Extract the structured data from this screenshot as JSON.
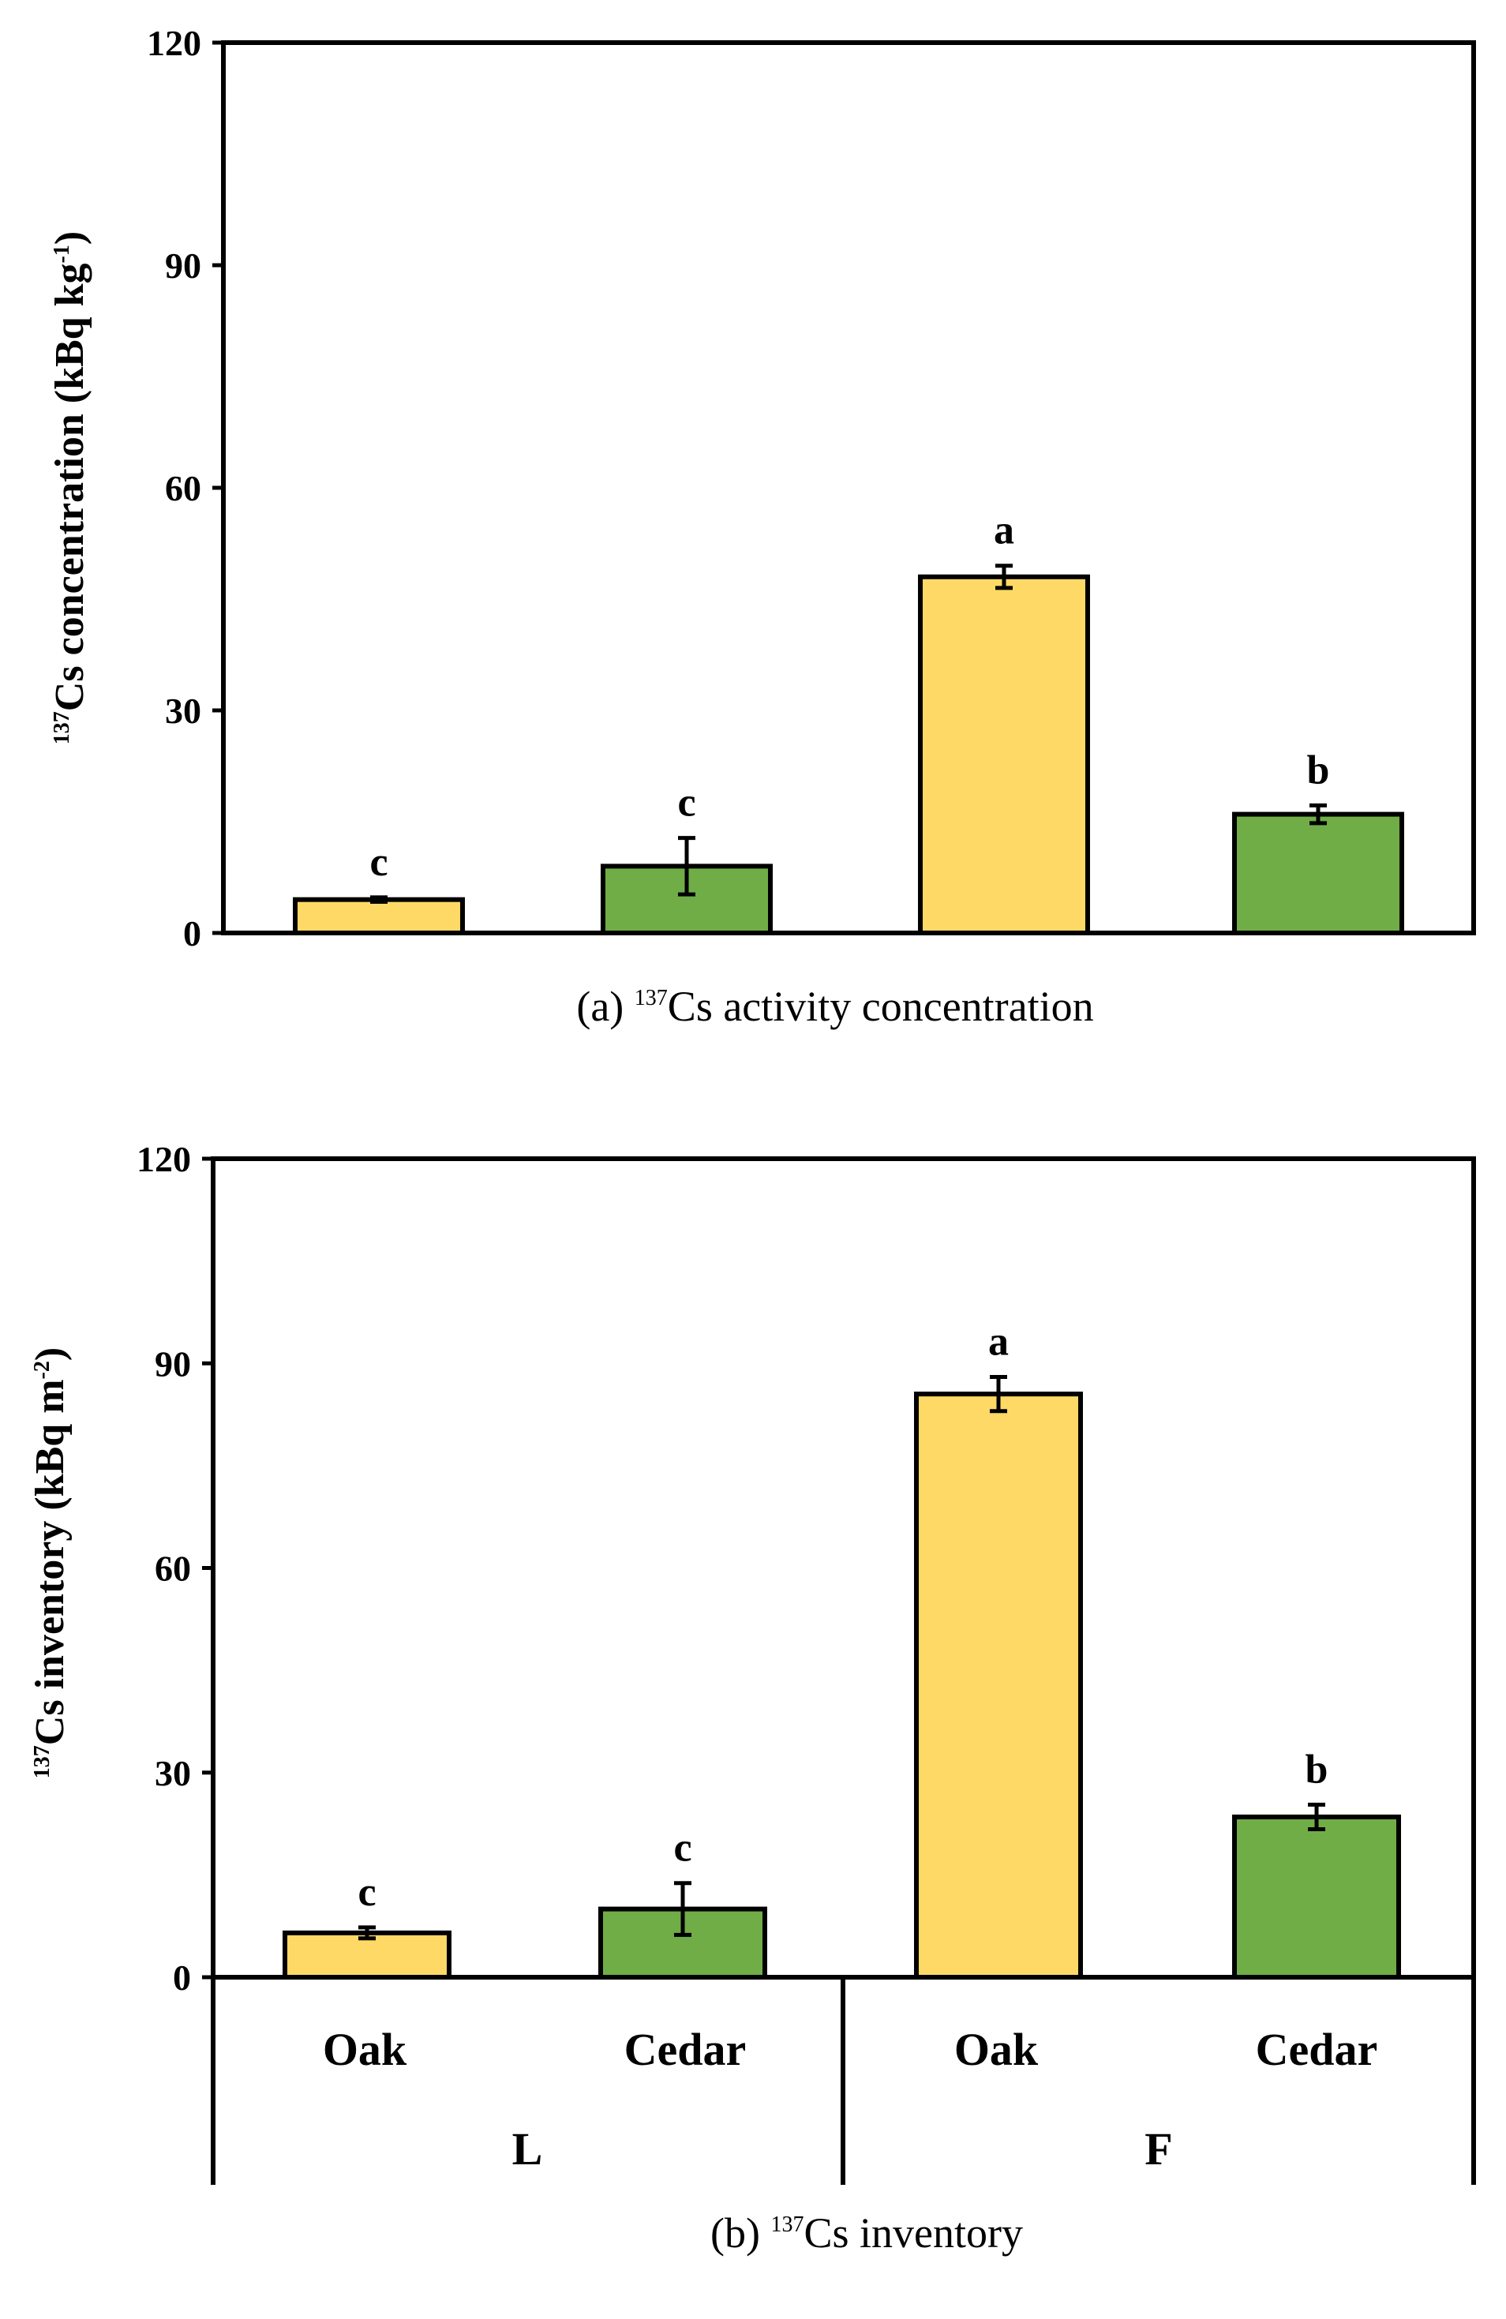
{
  "chart_data": [
    {
      "id": "a",
      "type": "bar",
      "caption": {
        "prefix": "(a) ",
        "sup": "137",
        "text": "Cs activity concentration"
      },
      "ylabel": {
        "sup": "137",
        "text": "Cs concentration (kBq kg",
        "unit_sup": "-1",
        "end": ")"
      },
      "ylim": [
        0,
        120
      ],
      "yticks": [
        "0",
        "30",
        "60",
        "90",
        "120"
      ],
      "bars": [
        {
          "group": "L",
          "category": "Oak",
          "value": 4.5,
          "error": 0.3,
          "letter": "c",
          "color": "#FFD966"
        },
        {
          "group": "L",
          "category": "Cedar",
          "value": 9.0,
          "error": 3.8,
          "letter": "c",
          "color": "#70AD47"
        },
        {
          "group": "F",
          "category": "Oak",
          "value": 48.0,
          "error": 1.5,
          "letter": "a",
          "color": "#FFD966"
        },
        {
          "group": "F",
          "category": "Cedar",
          "value": 16.0,
          "error": 1.2,
          "letter": "b",
          "color": "#70AD47"
        }
      ]
    },
    {
      "id": "b",
      "type": "bar",
      "caption": {
        "prefix": "(b) ",
        "sup": "137",
        "text": "Cs inventory"
      },
      "ylabel": {
        "sup": "137",
        "text": "Cs inventory (kBq m",
        "unit_sup": "-2",
        "end": ")"
      },
      "ylim": [
        0,
        120
      ],
      "yticks": [
        "0",
        "30",
        "60",
        "90",
        "120"
      ],
      "categories": [
        "Oak",
        "Cedar",
        "Oak",
        "Cedar"
      ],
      "groups": [
        "L",
        "F"
      ],
      "bars": [
        {
          "group": "L",
          "category": "Oak",
          "value": 6.5,
          "error": 0.8,
          "letter": "c",
          "color": "#FFD966"
        },
        {
          "group": "L",
          "category": "Cedar",
          "value": 10.0,
          "error": 3.8,
          "letter": "c",
          "color": "#70AD47"
        },
        {
          "group": "F",
          "category": "Oak",
          "value": 85.5,
          "error": 2.5,
          "letter": "a",
          "color": "#FFD966"
        },
        {
          "group": "F",
          "category": "Cedar",
          "value": 23.5,
          "error": 1.8,
          "letter": "b",
          "color": "#70AD47"
        }
      ]
    }
  ]
}
